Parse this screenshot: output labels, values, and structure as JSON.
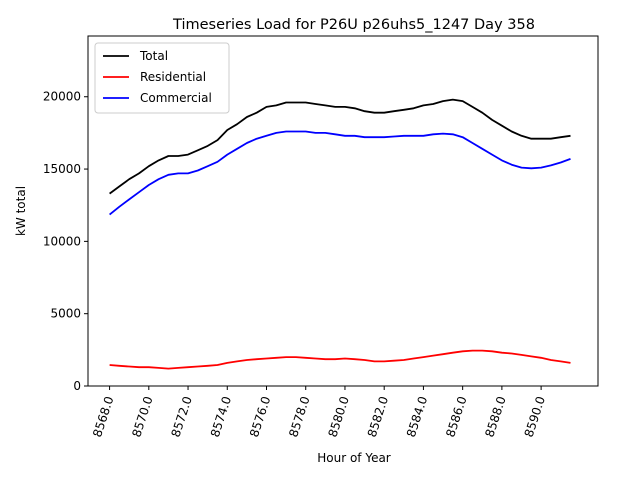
{
  "chart_data": {
    "type": "line",
    "title": "Timeseries Load for P26U p26uhs5_1247  Day 358",
    "xlabel": "Hour of Year",
    "ylabel": "kW total",
    "xlim": [
      8566.9,
      8592.9
    ],
    "ylim": [
      0,
      24200
    ],
    "xticks": [
      8568,
      8570,
      8572,
      8574,
      8576,
      8578,
      8580,
      8582,
      8584,
      8586,
      8588,
      8590
    ],
    "xtick_labels": [
      "8568.0",
      "8570.0",
      "8572.0",
      "8574.0",
      "8576.0",
      "8578.0",
      "8580.0",
      "8582.0",
      "8584.0",
      "8586.0",
      "8588.0",
      "8590.0"
    ],
    "yticks": [
      0,
      5000,
      10000,
      15000,
      20000
    ],
    "ytick_labels": [
      "0",
      "5000",
      "10000",
      "15000",
      "20000"
    ],
    "legend_position": "top-left",
    "grid": false,
    "x": [
      8568.0,
      8568.5,
      8569.0,
      8569.5,
      8570.0,
      8570.5,
      8571.0,
      8571.5,
      8572.0,
      8572.5,
      8573.0,
      8573.5,
      8574.0,
      8574.5,
      8575.0,
      8575.5,
      8576.0,
      8576.5,
      8577.0,
      8577.5,
      8578.0,
      8578.5,
      8579.0,
      8579.5,
      8580.0,
      8580.5,
      8581.0,
      8581.5,
      8582.0,
      8582.5,
      8583.0,
      8583.5,
      8584.0,
      8584.5,
      8585.0,
      8585.5,
      8586.0,
      8586.5,
      8587.0,
      8587.5,
      8588.0,
      8588.5,
      8589.0,
      8589.5,
      8590.0,
      8590.5,
      8591.0,
      8591.5
    ],
    "series": [
      {
        "name": "Total",
        "color": "#000000",
        "values": [
          13300,
          13800,
          14300,
          14700,
          15200,
          15600,
          15900,
          15900,
          16000,
          16300,
          16600,
          17000,
          17700,
          18100,
          18600,
          18900,
          19300,
          19400,
          19600,
          19600,
          19600,
          19500,
          19400,
          19300,
          19300,
          19200,
          19000,
          18900,
          18900,
          19000,
          19100,
          19200,
          19400,
          19500,
          19700,
          19800,
          19700,
          19300,
          18900,
          18400,
          18000,
          17600,
          17300,
          17100,
          17100,
          17100,
          17200,
          17300
        ]
      },
      {
        "name": "Residential",
        "color": "#ff0000",
        "values": [
          1450,
          1400,
          1350,
          1300,
          1300,
          1250,
          1200,
          1250,
          1300,
          1350,
          1400,
          1450,
          1600,
          1700,
          1800,
          1850,
          1900,
          1950,
          2000,
          2000,
          1950,
          1900,
          1850,
          1850,
          1900,
          1850,
          1800,
          1700,
          1700,
          1750,
          1800,
          1900,
          2000,
          2100,
          2200,
          2300,
          2400,
          2450,
          2450,
          2400,
          2300,
          2250,
          2150,
          2050,
          1950,
          1800,
          1700,
          1600
        ]
      },
      {
        "name": "Commercial",
        "color": "#0000ff",
        "values": [
          11850,
          12400,
          12900,
          13400,
          13900,
          14300,
          14600,
          14700,
          14700,
          14900,
          15200,
          15500,
          16000,
          16400,
          16800,
          17100,
          17300,
          17500,
          17600,
          17600,
          17600,
          17500,
          17500,
          17400,
          17300,
          17300,
          17200,
          17200,
          17200,
          17250,
          17300,
          17300,
          17300,
          17400,
          17450,
          17400,
          17200,
          16800,
          16400,
          16000,
          15600,
          15300,
          15100,
          15050,
          15100,
          15250,
          15450,
          15700
        ]
      }
    ]
  }
}
